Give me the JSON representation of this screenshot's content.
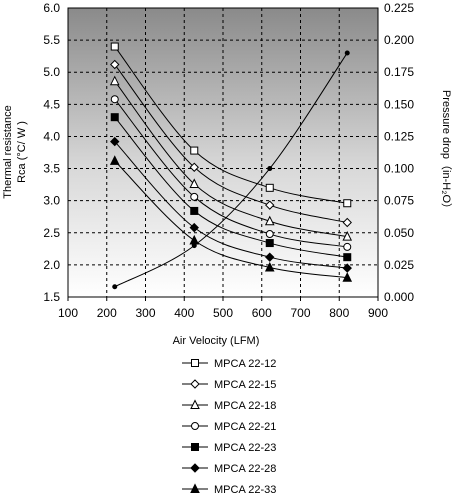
{
  "chart_data": {
    "type": "line",
    "xlabel": "Air Velocity (LFM)",
    "ylabel": "Thermal resistance Rca (°C/ W )",
    "ylabel_lines": [
      "Thermal resistance",
      "Rca (°C/ W )"
    ],
    "y2label": "Pressure drop（in-H₂O）",
    "xlim": [
      100,
      900
    ],
    "ylim": [
      1.5,
      6.0
    ],
    "y2lim": [
      0.0,
      0.225
    ],
    "x_ticks": [
      "100",
      "200",
      "300",
      "400",
      "500",
      "600",
      "700",
      "800",
      "900"
    ],
    "y_ticks": [
      "1.5",
      "2.0",
      "2.5",
      "3.0",
      "3.5",
      "4.0",
      "4.5",
      "5.0",
      "5.5",
      "6.0"
    ],
    "y2_ticks": [
      "0.000",
      "0.025",
      "0.050",
      "0.075",
      "0.100",
      "0.125",
      "0.150",
      "0.175",
      "0.200",
      "0.225"
    ],
    "grid": true,
    "legend_position": "below",
    "background": "gradient dark-gray to white",
    "x": [
      200,
      400,
      600,
      800
    ],
    "series": [
      {
        "name": "MPCA 22-12",
        "marker": "square-open",
        "values": [
          5.4,
          3.78,
          3.2,
          2.96
        ]
      },
      {
        "name": "MPCA 22-15",
        "marker": "diamond-open",
        "values": [
          5.12,
          3.52,
          2.93,
          2.66
        ]
      },
      {
        "name": "MPCA 22-18",
        "marker": "triangle-open",
        "values": [
          4.86,
          3.26,
          2.68,
          2.44
        ]
      },
      {
        "name": "MPCA 22-21",
        "marker": "circle-open",
        "values": [
          4.58,
          3.06,
          2.48,
          2.28
        ]
      },
      {
        "name": "MPCA 22-23",
        "marker": "square-filled",
        "values": [
          4.3,
          2.84,
          2.34,
          2.12
        ]
      },
      {
        "name": "MPCA 22-28",
        "marker": "diamond-filled",
        "values": [
          3.92,
          2.58,
          2.12,
          1.95
        ]
      },
      {
        "name": "MPCA 22-33",
        "marker": "triangle-filled",
        "values": [
          3.62,
          2.38,
          1.96,
          1.8
        ]
      }
    ],
    "pressure_series": {
      "axis": "right",
      "marker": "dot",
      "values": [
        0.008,
        0.04,
        0.1,
        0.19
      ]
    }
  }
}
